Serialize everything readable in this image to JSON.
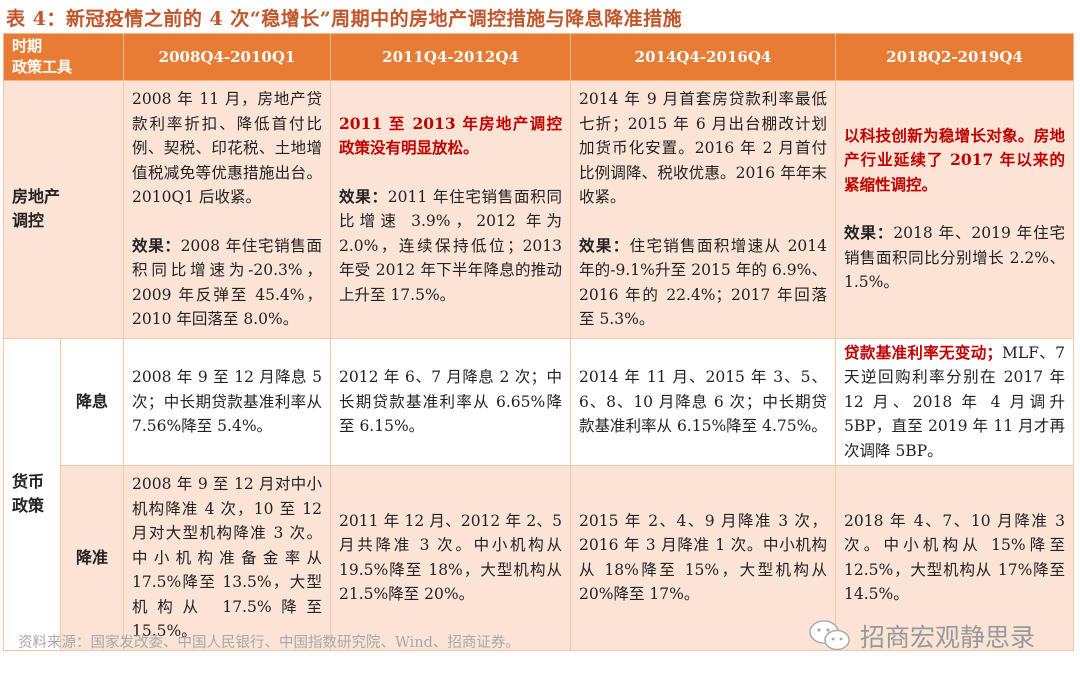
{
  "title": "表 4：新冠疫情之前的 4 次“稳增长”周期中的房地产调控措施与降息降准措施",
  "header": {
    "corner_top": "时期",
    "corner_bottom": "政策工具",
    "periods": [
      "2008Q4-2010Q1",
      "2011Q4-2012Q4",
      "2014Q4-2016Q4",
      "2018Q2-2019Q4"
    ]
  },
  "rows": {
    "real_estate": {
      "label": "房地产调控",
      "cells": [
        {
          "main": "2008 年 11 月，房地产贷款利率折扣、降低首付比例、契税、印花税、土地增值税减免等优惠措施出台。2010Q1 后收紧。",
          "main_red": false,
          "effect_label": "效果：",
          "effect": "2008 年住宅销售面积同比增速为-20.3%，2009 年反弹至 45.4%，2010 年回落至 8.0%。"
        },
        {
          "main": "2011 至 2013 年房地产调控政策没有明显放松。",
          "main_red": true,
          "effect_label": "效果：",
          "effect": "2011 年住宅销售面积同比增速 3.9%，2012 年为 2.0%，连续保持低位；2013 年受 2012 年下半年降息的推动上升至 17.5%。"
        },
        {
          "main": "2014 年 9 月首套房贷款利率最低七折；2015 年 6 月出台棚改计划加货币化安置。2016 年 2 月首付比例调降、税收优惠。2016 年年末收紧。",
          "main_red": false,
          "effect_label": "效果：",
          "effect": "住宅销售面积增速从 2014 年的-9.1%升至 2015 年的 6.9%、2016 年的 22.4%；2017 年回落至 5.3%。"
        },
        {
          "main": "以科技创新为稳增长对象。房地产行业延续了 2017 年以来的紧缩性调控。",
          "main_red": true,
          "effect_label": "效果：",
          "effect": "2018 年、2019 年住宅销售面积同比分别增长 2.2%、1.5%。"
        }
      ]
    },
    "monetary": {
      "label": "货币政策",
      "rate_cut": {
        "label": "降息",
        "cells": [
          {
            "text": "2008 年 9 至 12 月降息 5 次；中长期贷款基准利率从 7.56%降至 5.4%。"
          },
          {
            "text": "2012 年 6、7 月降息 2 次；中长期贷款基准利率从 6.65%降至 6.15%。"
          },
          {
            "text": "2014 年 11 月、2015 年 3、5、6、8、10 月降息 6 次；中长期贷款基准利率从 6.15%降至 4.75%。"
          },
          {
            "red": "贷款基准利率无变动；",
            "text": "MLF、7 天逆回购利率分别在 2017 年 12 月、2018 年 4 月调升 5BP，直至 2019 年 11 月才再次调降 5BP。"
          }
        ]
      },
      "rrr_cut": {
        "label": "降准",
        "cells": [
          {
            "text": "2008 年 9 至 12 月对中小机构降准 4 次，10 至 12 月对大型机构降准 3 次。中小机构准备金率从 17.5%降至 13.5%，大型机构从 17.5%降至 15.5%。"
          },
          {
            "text": "2011 年 12 月、2012 年 2、5 月共降准 3 次。中小机构从 19.5%降至 18%，大型机构从 21.5%降至 20%。"
          },
          {
            "text": "2015 年 2、4、9 月降准 3 次，2016 年 3 月降准 1 次。中小机构从 18%降至 15%，大型机构从 20%降至 17%。"
          },
          {
            "text": "2018 年 4、7、10 月降准 3 次。中小机构从 15%降至 12.5%，大型机构从 17%降至 14.5%。"
          }
        ]
      }
    }
  },
  "source": "资料来源：国家发改委、中国人民银行、中国指数研究院、Wind、招商证券。",
  "watermark": {
    "icon": "wechat-icon",
    "text": "招商宏观静思录"
  },
  "colors": {
    "header": "#E97C35",
    "peach": "#FBE4D6",
    "title": "#C0562A",
    "highlight": "#C00000"
  }
}
